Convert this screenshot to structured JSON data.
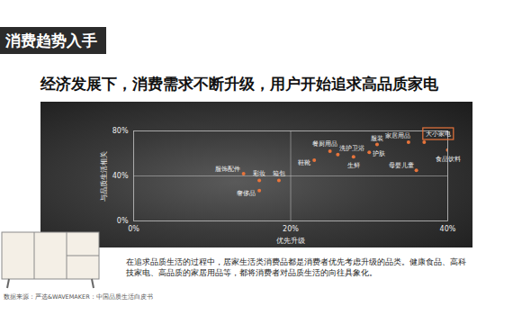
{
  "chart_data": {
    "type": "scatter",
    "title": "消费趋势入手",
    "subtitle": "经济发展下，消费需求不断升级，用户开始追求高品质家电",
    "x_label": "优先升级",
    "y_label": "与品质生活相关",
    "point_labels": [
      "服饰配件",
      "彩妆",
      "箱包",
      "奢侈品",
      "餐厨用品",
      "鞋靴",
      "洗护卫浴",
      "生鲜",
      "护肤",
      "服装",
      "家居用品",
      "大小家电",
      "母婴儿童",
      "食品饮料"
    ],
    "x": [
      14,
      16,
      18.5,
      16,
      25,
      23,
      26,
      28,
      30,
      31,
      35,
      37,
      36,
      40
    ],
    "values": [
      42,
      36,
      36,
      27,
      62,
      54,
      59,
      57,
      61,
      68,
      70,
      70,
      45,
      63
    ],
    "color": "#e8743b",
    "xlim": [
      0,
      40
    ],
    "ylim": [
      0,
      80
    ],
    "xticks": [
      {
        "value": 0,
        "label": "0%"
      },
      {
        "value": 20,
        "label": "20%"
      },
      {
        "value": 40,
        "label": "40%"
      }
    ],
    "yticks": [
      {
        "value": 0,
        "label": "0%"
      },
      {
        "value": 40,
        "label": "40%"
      },
      {
        "value": 80,
        "label": "80%"
      }
    ],
    "grid": true,
    "caption": "在追求品质生活的过程中，居家生活类消费品都是消费者优先考虑升级的品类。健康食品、高科技家电、高品质的家居用品等，都将消费者对品质生活的向往具象化。",
    "source": "数据来源：严选&WAVEMAKER：中国品质生活白皮书"
  }
}
